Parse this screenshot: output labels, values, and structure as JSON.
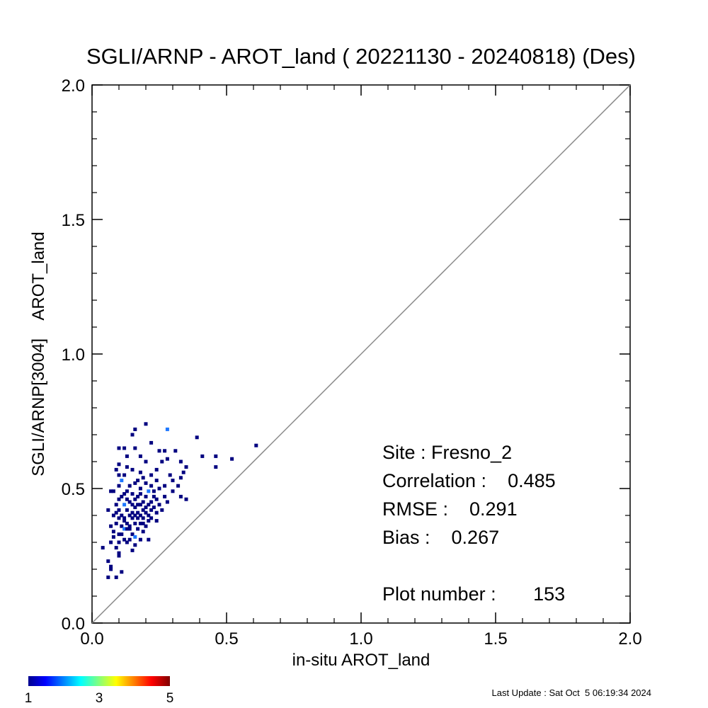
{
  "chart_data": {
    "type": "scatter",
    "title": "SGLI/ARNP - AROT_land ( 20221130 - 20240818) (Des)",
    "xlabel": "in-situ AROT_land",
    "ylabel": "SGLI/ARNP[3004]    AROT_land",
    "xlim": [
      0.0,
      2.0
    ],
    "ylim": [
      0.0,
      2.0
    ],
    "xticks": [
      "0.0",
      "0.5",
      "1.0",
      "1.5",
      "2.0"
    ],
    "yticks": [
      "0.0",
      "0.5",
      "1.0",
      "1.5",
      "2.0"
    ],
    "reference_line": "y = x",
    "color_scale": {
      "min_label": "1",
      "mid_label": "3",
      "max_label": "5",
      "min": 1,
      "max": 5,
      "colormap": "rainbow (blue to red)"
    },
    "stats": {
      "site": "Site : Fresno_2",
      "correlation": "Correlation :    0.485",
      "rmse": "RMSE :    0.291",
      "bias": "Bias :    0.267",
      "plot_number": "Plot number :       153"
    },
    "points": [
      {
        "x": 0.2,
        "y": 0.74,
        "c": 1
      },
      {
        "x": 0.16,
        "y": 0.72,
        "c": 1
      },
      {
        "x": 0.28,
        "y": 0.72,
        "c": 2
      },
      {
        "x": 0.15,
        "y": 0.7,
        "c": 1
      },
      {
        "x": 0.39,
        "y": 0.69,
        "c": 1
      },
      {
        "x": 0.22,
        "y": 0.67,
        "c": 1
      },
      {
        "x": 0.1,
        "y": 0.65,
        "c": 1
      },
      {
        "x": 0.12,
        "y": 0.65,
        "c": 1
      },
      {
        "x": 0.16,
        "y": 0.65,
        "c": 1
      },
      {
        "x": 0.25,
        "y": 0.64,
        "c": 1
      },
      {
        "x": 0.27,
        "y": 0.64,
        "c": 1
      },
      {
        "x": 0.31,
        "y": 0.64,
        "c": 1
      },
      {
        "x": 0.61,
        "y": 0.66,
        "c": 1
      },
      {
        "x": 0.41,
        "y": 0.62,
        "c": 1
      },
      {
        "x": 0.46,
        "y": 0.62,
        "c": 1
      },
      {
        "x": 0.52,
        "y": 0.61,
        "c": 1
      },
      {
        "x": 0.13,
        "y": 0.62,
        "c": 1
      },
      {
        "x": 0.18,
        "y": 0.62,
        "c": 1
      },
      {
        "x": 0.28,
        "y": 0.61,
        "c": 1
      },
      {
        "x": 0.1,
        "y": 0.59,
        "c": 1
      },
      {
        "x": 0.13,
        "y": 0.58,
        "c": 1
      },
      {
        "x": 0.2,
        "y": 0.6,
        "c": 1
      },
      {
        "x": 0.26,
        "y": 0.6,
        "c": 1
      },
      {
        "x": 0.33,
        "y": 0.6,
        "c": 1
      },
      {
        "x": 0.46,
        "y": 0.58,
        "c": 1
      },
      {
        "x": 0.35,
        "y": 0.58,
        "c": 1
      },
      {
        "x": 0.09,
        "y": 0.57,
        "c": 1
      },
      {
        "x": 0.15,
        "y": 0.57,
        "c": 1
      },
      {
        "x": 0.18,
        "y": 0.56,
        "c": 1
      },
      {
        "x": 0.24,
        "y": 0.57,
        "c": 1
      },
      {
        "x": 0.34,
        "y": 0.56,
        "c": 1
      },
      {
        "x": 0.1,
        "y": 0.55,
        "c": 1
      },
      {
        "x": 0.12,
        "y": 0.55,
        "c": 1
      },
      {
        "x": 0.19,
        "y": 0.54,
        "c": 1
      },
      {
        "x": 0.22,
        "y": 0.55,
        "c": 1
      },
      {
        "x": 0.29,
        "y": 0.55,
        "c": 1
      },
      {
        "x": 0.33,
        "y": 0.54,
        "c": 1
      },
      {
        "x": 0.11,
        "y": 0.53,
        "c": 2
      },
      {
        "x": 0.17,
        "y": 0.53,
        "c": 1
      },
      {
        "x": 0.2,
        "y": 0.52,
        "c": 1
      },
      {
        "x": 0.24,
        "y": 0.53,
        "c": 1
      },
      {
        "x": 0.3,
        "y": 0.53,
        "c": 1
      },
      {
        "x": 0.1,
        "y": 0.51,
        "c": 1
      },
      {
        "x": 0.14,
        "y": 0.51,
        "c": 1
      },
      {
        "x": 0.16,
        "y": 0.52,
        "c": 1
      },
      {
        "x": 0.22,
        "y": 0.51,
        "c": 1
      },
      {
        "x": 0.27,
        "y": 0.51,
        "c": 1
      },
      {
        "x": 0.32,
        "y": 0.51,
        "c": 1
      },
      {
        "x": 0.07,
        "y": 0.49,
        "c": 1
      },
      {
        "x": 0.08,
        "y": 0.49,
        "c": 1
      },
      {
        "x": 0.13,
        "y": 0.49,
        "c": 1
      },
      {
        "x": 0.18,
        "y": 0.5,
        "c": 1
      },
      {
        "x": 0.21,
        "y": 0.49,
        "c": 2
      },
      {
        "x": 0.25,
        "y": 0.5,
        "c": 1
      },
      {
        "x": 0.3,
        "y": 0.49,
        "c": 1
      },
      {
        "x": 0.12,
        "y": 0.48,
        "c": 1
      },
      {
        "x": 0.15,
        "y": 0.48,
        "c": 1
      },
      {
        "x": 0.17,
        "y": 0.47,
        "c": 1
      },
      {
        "x": 0.2,
        "y": 0.47,
        "c": 1
      },
      {
        "x": 0.23,
        "y": 0.47,
        "c": 1
      },
      {
        "x": 0.27,
        "y": 0.47,
        "c": 1
      },
      {
        "x": 0.33,
        "y": 0.47,
        "c": 1
      },
      {
        "x": 0.35,
        "y": 0.46,
        "c": 1
      },
      {
        "x": 0.1,
        "y": 0.46,
        "c": 1
      },
      {
        "x": 0.14,
        "y": 0.45,
        "c": 1
      },
      {
        "x": 0.16,
        "y": 0.46,
        "c": 1
      },
      {
        "x": 0.19,
        "y": 0.45,
        "c": 1
      },
      {
        "x": 0.22,
        "y": 0.45,
        "c": 1
      },
      {
        "x": 0.24,
        "y": 0.46,
        "c": 1
      },
      {
        "x": 0.28,
        "y": 0.45,
        "c": 1
      },
      {
        "x": 0.09,
        "y": 0.44,
        "c": 1
      },
      {
        "x": 0.12,
        "y": 0.44,
        "c": 2
      },
      {
        "x": 0.15,
        "y": 0.44,
        "c": 1
      },
      {
        "x": 0.18,
        "y": 0.44,
        "c": 1
      },
      {
        "x": 0.21,
        "y": 0.44,
        "c": 1
      },
      {
        "x": 0.23,
        "y": 0.43,
        "c": 1
      },
      {
        "x": 0.25,
        "y": 0.44,
        "c": 1
      },
      {
        "x": 0.06,
        "y": 0.42,
        "c": 1
      },
      {
        "x": 0.1,
        "y": 0.42,
        "c": 1
      },
      {
        "x": 0.13,
        "y": 0.42,
        "c": 1
      },
      {
        "x": 0.16,
        "y": 0.43,
        "c": 1
      },
      {
        "x": 0.19,
        "y": 0.42,
        "c": 1
      },
      {
        "x": 0.22,
        "y": 0.42,
        "c": 1
      },
      {
        "x": 0.17,
        "y": 0.41,
        "c": 1
      },
      {
        "x": 0.2,
        "y": 0.41,
        "c": 1
      },
      {
        "x": 0.24,
        "y": 0.41,
        "c": 1
      },
      {
        "x": 0.08,
        "y": 0.4,
        "c": 1
      },
      {
        "x": 0.11,
        "y": 0.4,
        "c": 1
      },
      {
        "x": 0.14,
        "y": 0.4,
        "c": 1
      },
      {
        "x": 0.18,
        "y": 0.4,
        "c": 1
      },
      {
        "x": 0.21,
        "y": 0.4,
        "c": 1
      },
      {
        "x": 0.1,
        "y": 0.39,
        "c": 1
      },
      {
        "x": 0.12,
        "y": 0.38,
        "c": 1
      },
      {
        "x": 0.15,
        "y": 0.39,
        "c": 1
      },
      {
        "x": 0.19,
        "y": 0.39,
        "c": 1
      },
      {
        "x": 0.22,
        "y": 0.39,
        "c": 1
      },
      {
        "x": 0.24,
        "y": 0.38,
        "c": 1
      },
      {
        "x": 0.09,
        "y": 0.37,
        "c": 1
      },
      {
        "x": 0.13,
        "y": 0.37,
        "c": 1
      },
      {
        "x": 0.16,
        "y": 0.37,
        "c": 1
      },
      {
        "x": 0.18,
        "y": 0.37,
        "c": 1
      },
      {
        "x": 0.2,
        "y": 0.36,
        "c": 1
      },
      {
        "x": 0.07,
        "y": 0.36,
        "c": 1
      },
      {
        "x": 0.11,
        "y": 0.36,
        "c": 1
      },
      {
        "x": 0.14,
        "y": 0.35,
        "c": 1
      },
      {
        "x": 0.17,
        "y": 0.35,
        "c": 1
      },
      {
        "x": 0.12,
        "y": 0.35,
        "c": 2
      },
      {
        "x": 0.08,
        "y": 0.34,
        "c": 1
      },
      {
        "x": 0.1,
        "y": 0.33,
        "c": 1
      },
      {
        "x": 0.15,
        "y": 0.33,
        "c": 1
      },
      {
        "x": 0.19,
        "y": 0.34,
        "c": 1
      },
      {
        "x": 0.16,
        "y": 0.32,
        "c": 2
      },
      {
        "x": 0.08,
        "y": 0.32,
        "c": 1
      },
      {
        "x": 0.12,
        "y": 0.31,
        "c": 1
      },
      {
        "x": 0.18,
        "y": 0.31,
        "c": 1
      },
      {
        "x": 0.21,
        "y": 0.31,
        "c": 1
      },
      {
        "x": 0.07,
        "y": 0.3,
        "c": 1
      },
      {
        "x": 0.1,
        "y": 0.3,
        "c": 1
      },
      {
        "x": 0.13,
        "y": 0.3,
        "c": 1
      },
      {
        "x": 0.16,
        "y": 0.29,
        "c": 1
      },
      {
        "x": 0.04,
        "y": 0.28,
        "c": 1
      },
      {
        "x": 0.09,
        "y": 0.28,
        "c": 1
      },
      {
        "x": 0.15,
        "y": 0.27,
        "c": 1
      },
      {
        "x": 0.1,
        "y": 0.26,
        "c": 1
      },
      {
        "x": 0.1,
        "y": 0.25,
        "c": 1
      },
      {
        "x": 0.06,
        "y": 0.23,
        "c": 1
      },
      {
        "x": 0.07,
        "y": 0.21,
        "c": 1
      },
      {
        "x": 0.07,
        "y": 0.2,
        "c": 1
      },
      {
        "x": 0.11,
        "y": 0.19,
        "c": 1
      },
      {
        "x": 0.06,
        "y": 0.17,
        "c": 1
      },
      {
        "x": 0.09,
        "y": 0.17,
        "c": 1
      },
      {
        "x": 0.13,
        "y": 0.35,
        "c": 1
      },
      {
        "x": 0.11,
        "y": 0.33,
        "c": 1
      },
      {
        "x": 0.14,
        "y": 0.31,
        "c": 1
      },
      {
        "x": 0.17,
        "y": 0.39,
        "c": 1
      },
      {
        "x": 0.2,
        "y": 0.43,
        "c": 1
      },
      {
        "x": 0.23,
        "y": 0.49,
        "c": 1
      },
      {
        "x": 0.26,
        "y": 0.42,
        "c": 1
      },
      {
        "x": 0.09,
        "y": 0.41,
        "c": 1
      },
      {
        "x": 0.15,
        "y": 0.41,
        "c": 1
      },
      {
        "x": 0.13,
        "y": 0.46,
        "c": 1
      },
      {
        "x": 0.18,
        "y": 0.48,
        "c": 1
      },
      {
        "x": 0.11,
        "y": 0.47,
        "c": 1
      },
      {
        "x": 0.21,
        "y": 0.38,
        "c": 1
      },
      {
        "x": 0.14,
        "y": 0.36,
        "c": 1
      },
      {
        "x": 0.12,
        "y": 0.39,
        "c": 1
      },
      {
        "x": 0.16,
        "y": 0.4,
        "c": 1
      },
      {
        "x": 0.19,
        "y": 0.37,
        "c": 1
      },
      {
        "x": 0.17,
        "y": 0.44,
        "c": 1
      }
    ]
  },
  "footer": {
    "last_update": "Last Update : Sat Oct  5 06:19:34 2024"
  }
}
